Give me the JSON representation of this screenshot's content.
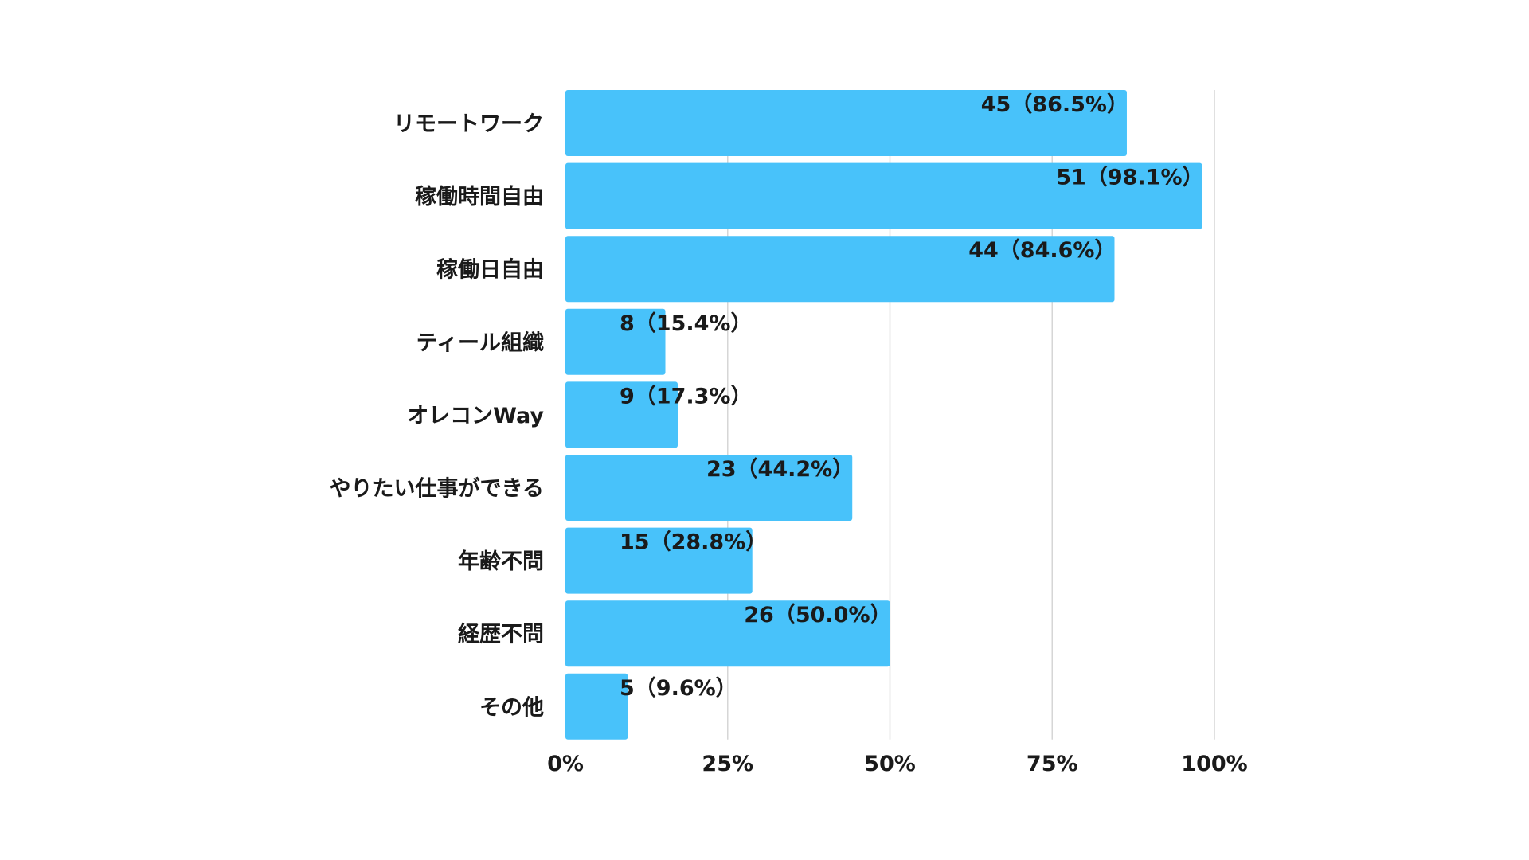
{
  "chart_data": {
    "type": "bar",
    "orientation": "horizontal",
    "categories": [
      "リモートワーク",
      "稼働時間自由",
      "稼働日自由",
      "ティール組織",
      "オレコンWay",
      "やりたい仕事ができる",
      "年齢不問",
      "経歴不問",
      "その他"
    ],
    "values": [
      86.5,
      98.1,
      84.6,
      15.4,
      17.3,
      44.2,
      28.8,
      50.0,
      9.6
    ],
    "counts": [
      45,
      51,
      44,
      8,
      9,
      23,
      15,
      26,
      5
    ],
    "data_labels": [
      "45（86.5%）",
      "51（98.1%）",
      "44（84.6%）",
      "8（15.4%）",
      "9（17.3%）",
      "23（44.2%）",
      "15（28.8%）",
      "26（50.0%）",
      "5（9.6%）"
    ],
    "xlim": [
      0,
      100
    ],
    "x_ticks": [
      0,
      25,
      50,
      75,
      100
    ],
    "x_tick_labels": [
      "0%",
      "25%",
      "50%",
      "75%",
      "100%"
    ],
    "title": "",
    "xlabel": "",
    "ylabel": "",
    "grid": "vertical",
    "legend": "none",
    "bar_color": "#48c2fa"
  }
}
